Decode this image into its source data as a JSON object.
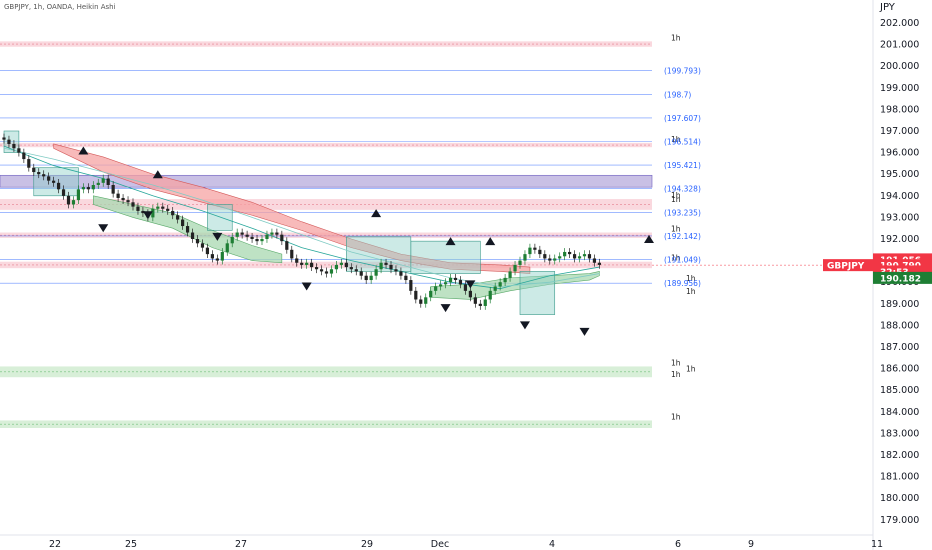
{
  "header": {
    "title": "GBPJPY, 1h, OANDA, Heikin Ashi",
    "currency": "JPY"
  },
  "colors": {
    "up": "#1e7e34",
    "down": "#222222",
    "bearish_cloud": "#f5a3a3",
    "bullish_cloud": "#a8d8b0",
    "level_line": "#2962ff",
    "resistance_zone": "#f8c8d0",
    "support_zone": "#c8e8c8",
    "box_fill": "#9c8cd0",
    "price_tag": "#f23645"
  },
  "chart_data": {
    "type": "line",
    "price_axis": {
      "ticks": [
        "202.000",
        "201.000",
        "200.000",
        "199.000",
        "198.000",
        "197.000",
        "196.000",
        "195.000",
        "194.000",
        "193.000",
        "192.000",
        "191.000",
        "190.000",
        "189.000",
        "188.000",
        "187.000",
        "186.000",
        "185.000",
        "184.000",
        "183.000",
        "182.000",
        "181.000",
        "180.000",
        "179.000"
      ],
      "ylim": [
        178.9,
        202.4
      ]
    },
    "time_axis": {
      "ticks": [
        "22",
        "25",
        "27",
        "29",
        "Dec",
        "4",
        "6",
        "9",
        "11"
      ]
    },
    "fib_levels": [
      {
        "label": "(199.793)",
        "value": 199.793
      },
      {
        "label": "(198.7)",
        "value": 198.7
      },
      {
        "label": "(197.607)",
        "value": 197.607
      },
      {
        "label": "(196.514)",
        "value": 196.514
      },
      {
        "label": "(195.421)",
        "value": 195.421
      },
      {
        "label": "(194.328)",
        "value": 194.328
      },
      {
        "label": "(193.235)",
        "value": 193.235
      },
      {
        "label": "(192.142)",
        "value": 192.142
      },
      {
        "label": "(191.049)",
        "value": 191.049
      },
      {
        "label": "(189.956)",
        "value": 189.956
      }
    ],
    "zones": [
      {
        "kind": "resistance",
        "top": 201.15,
        "bottom": 200.9,
        "label": "1h"
      },
      {
        "kind": "resistance",
        "top": 196.45,
        "bottom": 196.25,
        "label": "1h"
      },
      {
        "kind": "resistance",
        "top": 193.85,
        "bottom": 193.35,
        "label": "1h"
      },
      {
        "kind": "resistance",
        "top": 192.3,
        "bottom": 192.05,
        "label": "1h"
      },
      {
        "kind": "resistance",
        "top": 190.95,
        "bottom": 190.65,
        "label": "1h"
      },
      {
        "kind": "support",
        "top": 186.1,
        "bottom": 185.6,
        "label": "1h"
      },
      {
        "kind": "support",
        "top": 183.6,
        "bottom": 183.25,
        "label": "1h"
      }
    ],
    "extra_tf_labels": [
      {
        "label": "1h",
        "value": 193.85
      },
      {
        "label": "1h",
        "value": 186.0
      },
      {
        "label": "1h",
        "value": 185.75
      },
      {
        "label": "1h",
        "value": 190.2
      },
      {
        "label": "1h",
        "value": 189.6
      }
    ],
    "side_tags": [
      {
        "label": "191.056",
        "value": 191.056,
        "color": "#f23645"
      },
      {
        "label": "190.790",
        "value": 190.79,
        "color": "#f23645"
      },
      {
        "label": "32:53",
        "value": 190.5,
        "color": "#f23645"
      },
      {
        "label": "190.182",
        "value": 190.2,
        "color": "#1e7e34"
      },
      {
        "label": "GBPJPY",
        "value": 190.79,
        "color": "#f23645"
      }
    ],
    "series": [
      {
        "name": "",
        "kind": "price",
        "x": [
          0,
          1,
          2,
          3,
          4,
          5,
          6,
          7,
          8,
          9,
          10,
          11,
          12,
          13,
          14,
          15,
          16,
          17,
          18,
          19,
          20,
          21,
          22,
          23,
          24,
          25,
          26,
          27,
          28,
          29,
          30,
          31,
          32,
          33,
          34,
          35,
          36,
          37,
          38,
          39,
          40,
          41,
          42,
          43,
          44,
          45,
          46,
          47,
          48,
          49,
          50,
          51,
          52,
          53,
          54,
          55,
          56,
          57,
          58,
          59,
          60,
          61,
          62,
          63,
          64,
          65,
          66,
          67,
          68,
          69,
          70,
          71,
          72,
          73,
          74,
          75,
          76,
          77,
          78,
          79,
          80,
          81,
          82,
          83,
          84,
          85,
          86,
          87,
          88,
          89,
          90,
          91,
          92,
          93,
          94,
          95,
          96,
          97,
          98,
          99,
          100,
          101,
          102,
          103,
          104,
          105,
          106,
          107,
          108,
          109,
          110,
          111,
          112,
          113,
          114,
          115,
          116,
          117,
          118,
          119,
          120
        ],
        "y": [
          196.6,
          196.4,
          196.2,
          196.0,
          195.7,
          195.3,
          195.1,
          195.0,
          194.9,
          194.7,
          194.6,
          194.3,
          194.0,
          193.6,
          193.8,
          194.3,
          194.4,
          194.3,
          194.5,
          194.6,
          194.8,
          194.5,
          194.1,
          193.9,
          193.8,
          193.7,
          193.5,
          193.3,
          193.2,
          193.0,
          193.4,
          193.5,
          193.4,
          193.3,
          193.1,
          192.9,
          192.6,
          192.3,
          192.0,
          191.8,
          191.6,
          191.3,
          191.1,
          191.0,
          191.4,
          191.8,
          192.1,
          192.3,
          192.2,
          192.1,
          192.0,
          191.9,
          192.0,
          192.2,
          192.3,
          192.2,
          191.9,
          191.5,
          191.1,
          190.9,
          190.8,
          190.9,
          190.7,
          190.6,
          190.5,
          190.4,
          190.6,
          190.8,
          190.9,
          190.7,
          190.6,
          190.5,
          190.3,
          190.1,
          190.3,
          190.6,
          190.9,
          190.8,
          190.6,
          190.5,
          190.3,
          190.1,
          189.6,
          189.2,
          189.0,
          189.3,
          189.6,
          189.8,
          189.9,
          190.0,
          190.2,
          190.1,
          189.9,
          189.6,
          189.3,
          189.0,
          188.9,
          189.2,
          189.6,
          189.8,
          190.0,
          190.2,
          190.5,
          190.8,
          191.0,
          191.3,
          191.6,
          191.5,
          191.3,
          191.1,
          191.0,
          191.1,
          191.2,
          191.4,
          191.3,
          191.1,
          191.2,
          191.3,
          191.1,
          190.9,
          190.8
        ]
      },
      {
        "name": "",
        "kind": "ma-fast",
        "x": [
          0,
          10,
          20,
          30,
          40,
          50,
          60,
          70,
          80,
          90,
          100,
          110,
          120
        ],
        "y": [
          196.3,
          195.4,
          194.8,
          194.0,
          193.3,
          192.5,
          191.6,
          191.0,
          190.5,
          190.0,
          189.7,
          190.3,
          190.7
        ]
      },
      {
        "name": "",
        "kind": "ma-slow",
        "x": [
          0,
          10,
          20,
          30,
          40,
          50,
          60,
          70,
          80,
          90,
          100,
          110,
          120
        ],
        "y": [
          196.2,
          195.7,
          195.1,
          194.5,
          193.8,
          193.0,
          192.2,
          191.4,
          190.8,
          190.2,
          189.8,
          190.0,
          190.4
        ]
      }
    ],
    "clouds": [
      {
        "kind": "bearish",
        "x": [
          10,
          20,
          30,
          40,
          50,
          60,
          70,
          80,
          90,
          100,
          106
        ],
        "top": [
          196.4,
          195.8,
          195.0,
          194.4,
          193.7,
          192.8,
          192.0,
          191.3,
          190.9,
          190.8,
          190.7
        ],
        "bottom": [
          196.2,
          195.1,
          194.3,
          193.7,
          193.1,
          192.4,
          191.6,
          191.0,
          190.6,
          190.5,
          190.4
        ]
      },
      {
        "kind": "bullish",
        "x": [
          18,
          26,
          34,
          42,
          50,
          56
        ],
        "top": [
          194.0,
          193.6,
          193.2,
          192.4,
          191.7,
          191.3
        ],
        "bottom": [
          193.6,
          193.0,
          192.5,
          191.6,
          191.0,
          190.9
        ]
      },
      {
        "kind": "bullish",
        "x": [
          86,
          94,
          102,
          110,
          118,
          120
        ],
        "top": [
          189.8,
          189.9,
          190.2,
          190.3,
          190.4,
          190.5
        ],
        "bottom": [
          189.3,
          189.2,
          189.6,
          189.9,
          190.1,
          190.3
        ]
      }
    ],
    "markers": [
      {
        "kind": "up",
        "x": 16,
        "y": 196.1
      },
      {
        "kind": "down",
        "x": 20,
        "y": 192.5
      },
      {
        "kind": "down",
        "x": 29,
        "y": 193.1
      },
      {
        "kind": "up",
        "x": 31,
        "y": 195.0
      },
      {
        "kind": "down",
        "x": 43,
        "y": 192.1
      },
      {
        "kind": "down",
        "x": 61,
        "y": 189.8
      },
      {
        "kind": "up",
        "x": 75,
        "y": 193.2
      },
      {
        "kind": "down",
        "x": 89,
        "y": 188.8
      },
      {
        "kind": "up",
        "x": 90,
        "y": 191.9
      },
      {
        "kind": "down",
        "x": 94,
        "y": 189.9
      },
      {
        "kind": "up",
        "x": 98,
        "y": 191.9
      },
      {
        "kind": "down",
        "x": 105,
        "y": 188.0
      },
      {
        "kind": "down",
        "x": 117,
        "y": 187.7
      },
      {
        "kind": "up",
        "x": 130,
        "y": 192.0
      }
    ],
    "boxes": [
      {
        "x0": 0,
        "x1": 3,
        "top": 197.0,
        "bottom": 196.0
      },
      {
        "x0": 6,
        "x1": 15,
        "top": 195.3,
        "bottom": 194.0
      },
      {
        "x0": 41,
        "x1": 46,
        "top": 193.6,
        "bottom": 192.4
      },
      {
        "x0": 69,
        "x1": 82,
        "top": 192.1,
        "bottom": 190.5
      },
      {
        "x0": 82,
        "x1": 96,
        "top": 191.9,
        "bottom": 190.4
      },
      {
        "x0": 104,
        "x1": 111,
        "top": 190.5,
        "bottom": 188.5
      }
    ],
    "purple_zone": {
      "top": 194.95,
      "bottom": 194.4
    }
  }
}
